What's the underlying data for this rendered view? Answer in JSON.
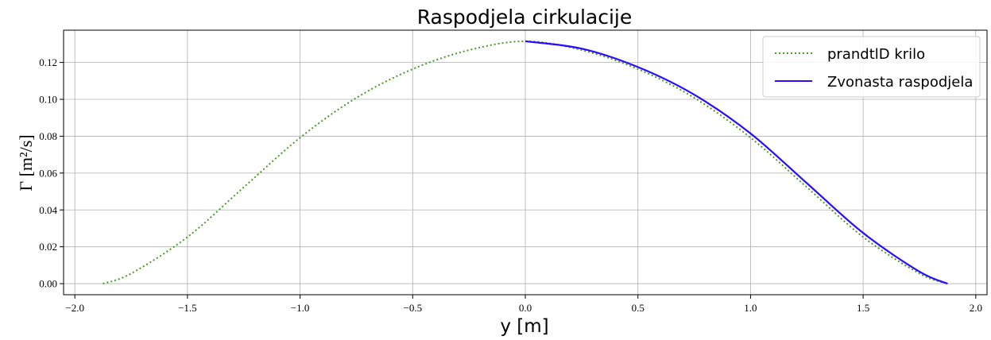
{
  "chart_data": {
    "type": "line",
    "title": "Raspodjela cirkulacije",
    "xlabel": "y [m]",
    "ylabel": "Γ [m²/s]",
    "xlim": [
      -2.05,
      2.05
    ],
    "ylim": [
      -0.006,
      0.1375
    ],
    "grid": true,
    "legend": "top-right",
    "x_ticks": [
      -2.0,
      -1.5,
      -1.0,
      -0.5,
      0.0,
      0.5,
      1.0,
      1.5,
      2.0
    ],
    "x_tick_labels": [
      "−2.0",
      "−1.5",
      "−1.0",
      "−0.5",
      "0.0",
      "0.5",
      "1.0",
      "1.5",
      "2.0"
    ],
    "y_ticks": [
      0.0,
      0.02,
      0.04,
      0.06,
      0.08,
      0.1,
      0.12
    ],
    "y_tick_labels": [
      "0.00",
      "0.02",
      "0.04",
      "0.06",
      "0.08",
      "0.10",
      "0.12"
    ],
    "series": [
      {
        "name": "prandtlD krilo",
        "color": "#4a9a2a",
        "style": "dotted",
        "x": [
          -1.875,
          -1.75,
          -1.5,
          -1.25,
          -1.0,
          -0.75,
          -0.5,
          -0.25,
          0.0,
          0.25,
          0.5,
          0.75,
          1.0,
          1.25,
          1.5,
          1.75,
          1.875
        ],
        "y": [
          0.0,
          0.0055,
          0.0253,
          0.0523,
          0.0792,
          0.1008,
          0.1164,
          0.1267,
          0.1315,
          0.1267,
          0.1164,
          0.1008,
          0.0792,
          0.0523,
          0.0253,
          0.0055,
          0.0
        ]
      },
      {
        "name": "Zvonasta raspodjela",
        "color": "#2a0cff",
        "style": "solid",
        "x": [
          0.0,
          0.25,
          0.5,
          0.75,
          1.0,
          1.25,
          1.5,
          1.75,
          1.875
        ],
        "y": [
          0.1315,
          0.1275,
          0.1175,
          0.1025,
          0.0815,
          0.0545,
          0.0275,
          0.0065,
          0.0
        ]
      }
    ]
  }
}
